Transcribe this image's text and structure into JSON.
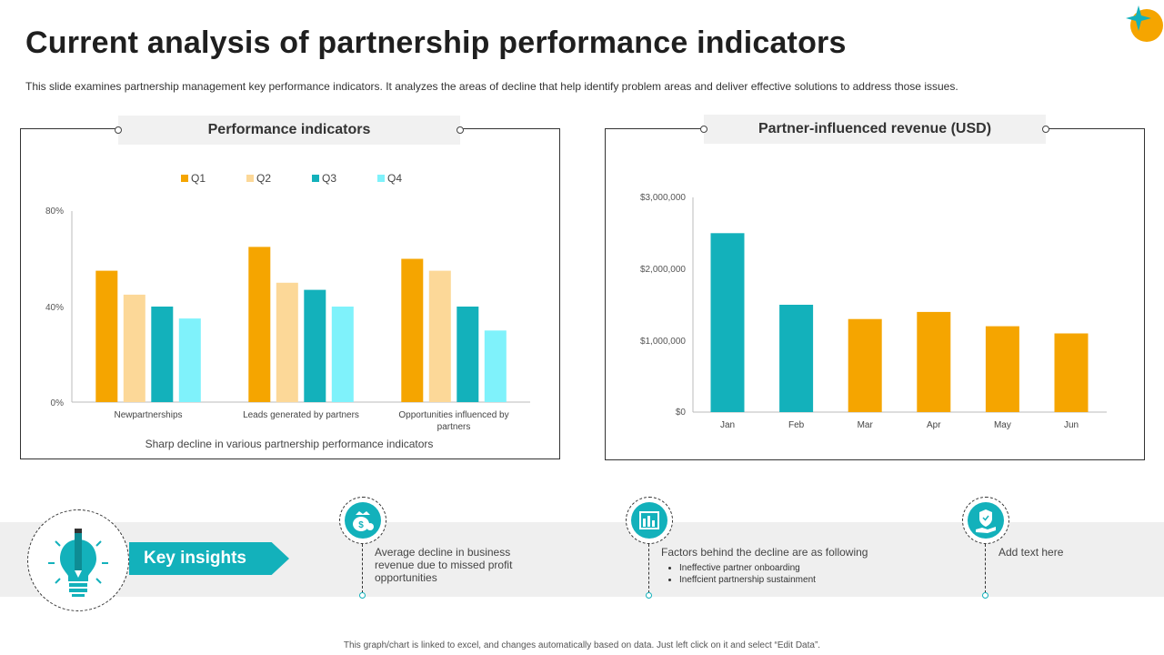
{
  "header": {
    "title": "Current analysis of partnership performance indicators",
    "subtitle": "This slide examines partnership management key performance indicators. It analyzes the areas of decline that help identify problem areas and deliver effective solutions to address those issues."
  },
  "colors": {
    "q1": "#f5a500",
    "q2": "#fcd898",
    "q3": "#13b1bb",
    "q4": "#7ff2fb",
    "teal": "#13b1bb",
    "orange": "#f5a500"
  },
  "left_panel": {
    "header": "Performance indicators",
    "caption": "Sharp decline in various partnership performance indicators"
  },
  "right_panel": {
    "header": "Partner-influenced revenue (USD)"
  },
  "chart_data": [
    {
      "type": "bar",
      "title": "Performance indicators",
      "categories": [
        "Newpartnerships",
        "Leads generated by partners",
        "Opportunities influenced by partners"
      ],
      "series": [
        {
          "name": "Q1",
          "values": [
            0.55,
            0.65,
            0.6
          ]
        },
        {
          "name": "Q2",
          "values": [
            0.45,
            0.5,
            0.55
          ]
        },
        {
          "name": "Q3",
          "values": [
            0.4,
            0.47,
            0.4
          ]
        },
        {
          "name": "Q4",
          "values": [
            0.35,
            0.4,
            0.3
          ]
        }
      ],
      "ylim": [
        0,
        0.8
      ],
      "yticks": [
        "0%",
        "40%",
        "80%"
      ],
      "legend": "top",
      "xlabel": "Sharp decline in various partnership performance indicators",
      "ylabel": ""
    },
    {
      "type": "bar",
      "title": "Partner-influenced revenue (USD)",
      "categories": [
        "Jan",
        "Feb",
        "Mar",
        "Apr",
        "May",
        "Jun"
      ],
      "values": [
        2500000,
        1500000,
        1300000,
        1400000,
        1200000,
        1100000
      ],
      "highlighted": [
        "Jan",
        "Feb"
      ],
      "ylim": [
        0,
        3000000
      ],
      "yticks": [
        "$0",
        "$1,000,000",
        "$2,000,000",
        "$3,000,000"
      ],
      "xlabel": "",
      "ylabel": ""
    }
  ],
  "insights": {
    "banner_label": "Key insights",
    "items": [
      {
        "icon": "money-bag-icon",
        "text": "Average decline in business revenue due to missed profit opportunities"
      },
      {
        "icon": "bar-chart-icon",
        "text": "Factors behind the decline are as following",
        "bullets": [
          "Ineffective partner onboarding",
          "Ineffcient partnership sustainment"
        ]
      },
      {
        "icon": "hand-shield-icon",
        "text": "Add text here"
      }
    ]
  },
  "footer": {
    "note": "This graph/chart is linked to excel, and changes automatically based on data. Just left click on it and select “Edit Data”."
  }
}
